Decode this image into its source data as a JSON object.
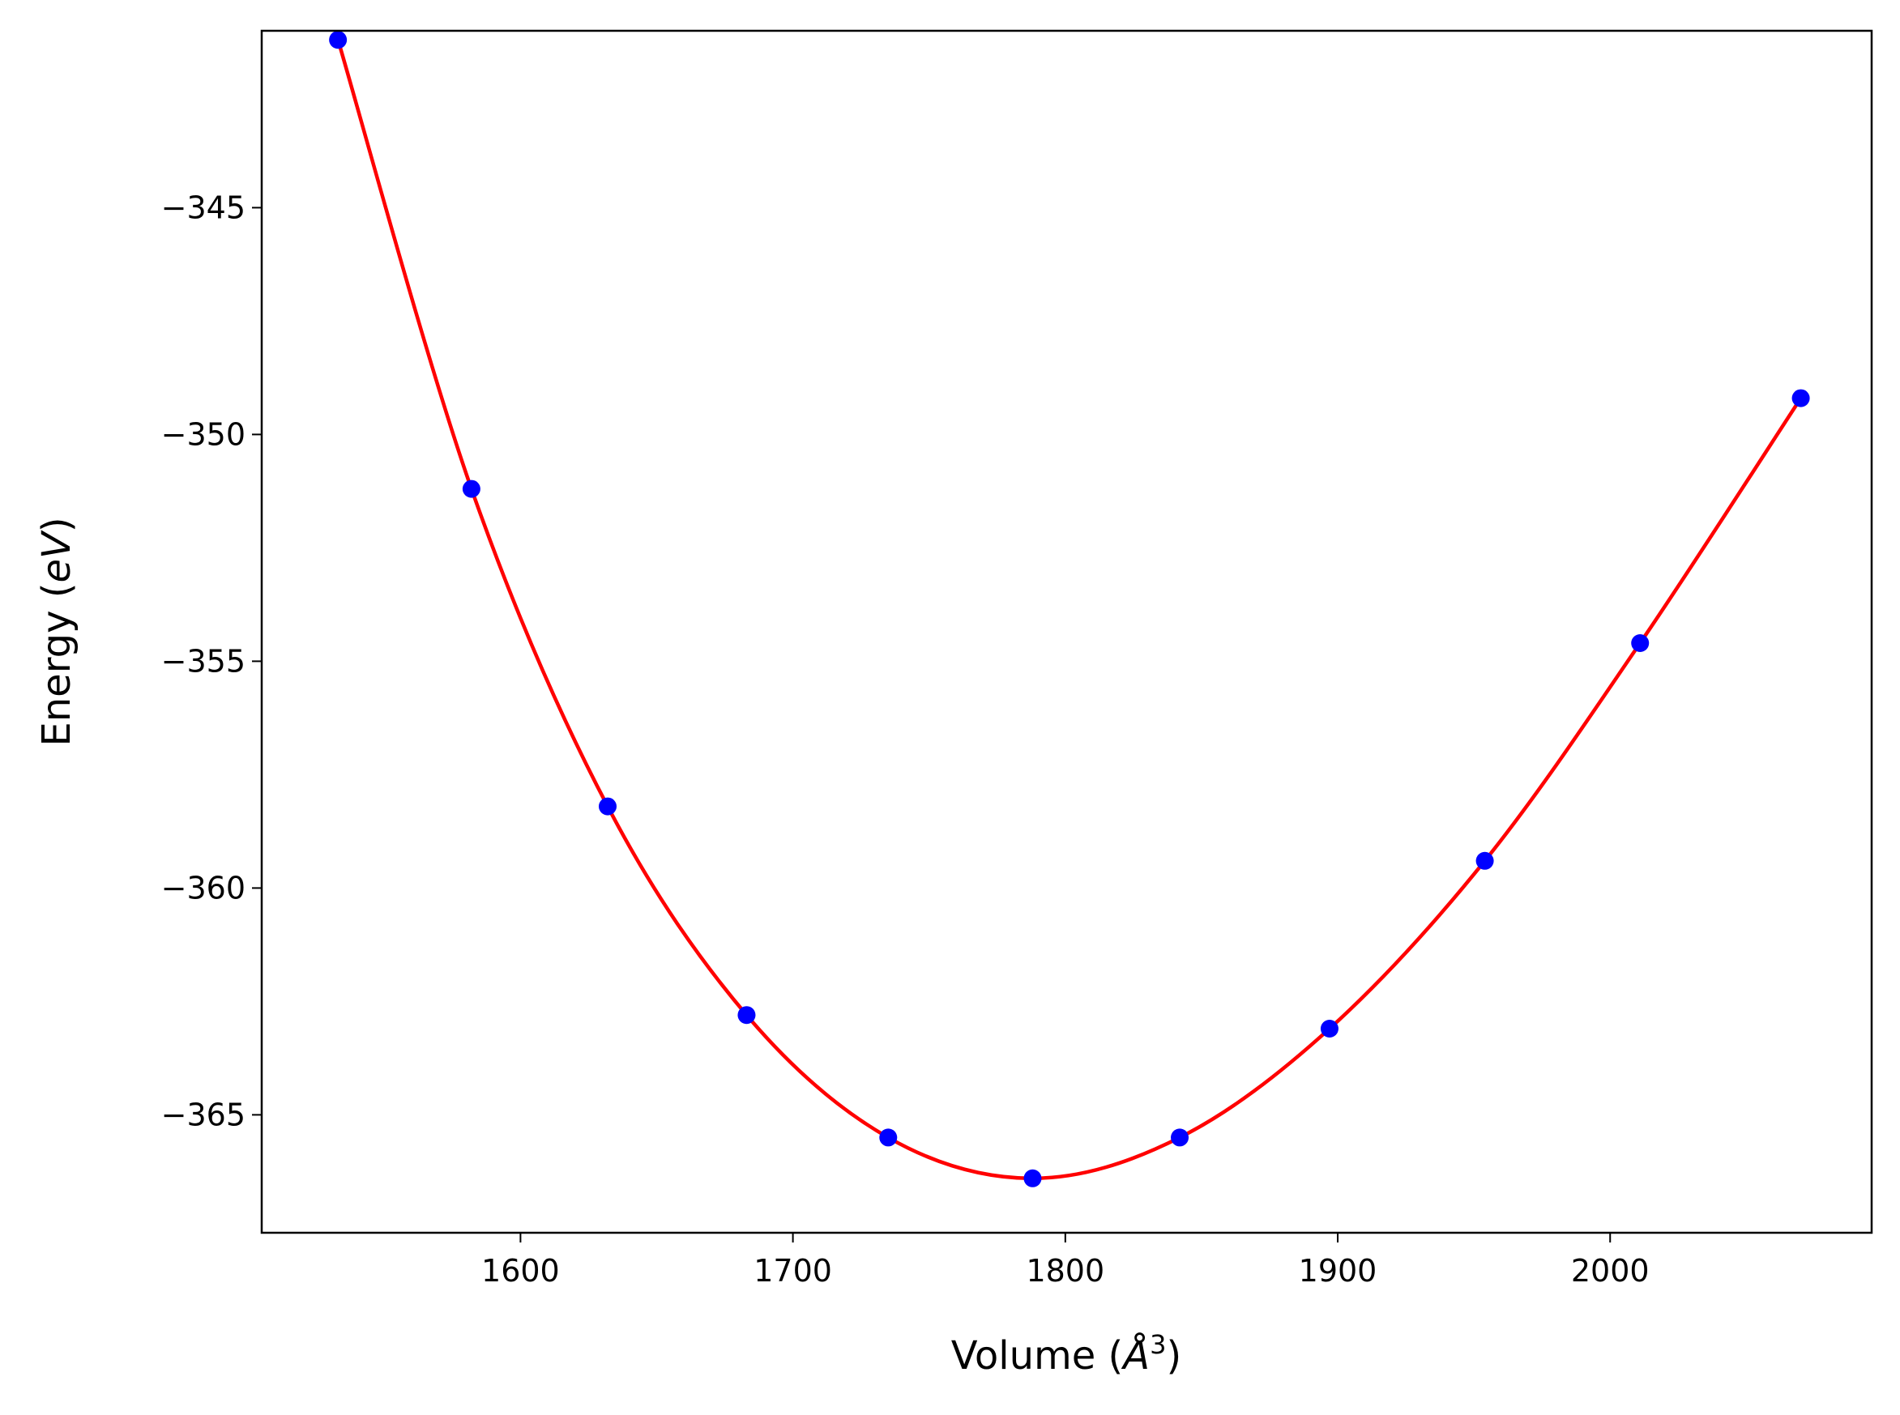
{
  "chart_data": {
    "type": "scatter",
    "title": "",
    "xlabel": {
      "prefix": "Volume (",
      "italic": "Å",
      "sup": "3",
      "suffix": ")"
    },
    "ylabel": {
      "prefix": "Energy (",
      "italic": "eV",
      "suffix": ")"
    },
    "xlim": [
      1505,
      2096
    ],
    "ylim": [
      -367.6,
      -341.1
    ],
    "xticks": [
      1600,
      1700,
      1800,
      1900,
      2000
    ],
    "yticks": [
      -345,
      -350,
      -355,
      -360,
      -365
    ],
    "xtick_labels": [
      "1600",
      "1700",
      "1800",
      "1900",
      "2000"
    ],
    "ytick_labels": [
      "−345",
      "−350",
      "−355",
      "−360",
      "−365"
    ],
    "grid": false,
    "series": [
      {
        "kind": "points",
        "color": "#0000ff",
        "x": [
          1533,
          1582,
          1632,
          1683,
          1735,
          1788,
          1842,
          1897,
          1954,
          2011,
          2070
        ],
        "y": [
          -341.3,
          -351.2,
          -358.2,
          -362.8,
          -365.5,
          -366.4,
          -365.5,
          -363.1,
          -359.4,
          -354.6,
          -349.2
        ]
      },
      {
        "kind": "fit-curve",
        "color": "#ff0000",
        "x_range": [
          1533,
          2070
        ]
      }
    ]
  }
}
